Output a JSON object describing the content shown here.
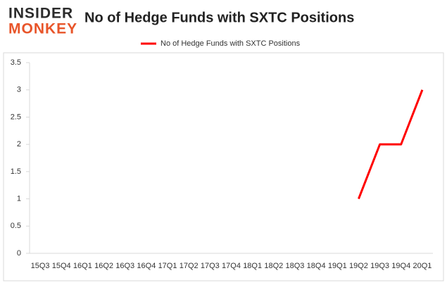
{
  "chart_data": {
    "type": "line",
    "logo": [
      "INSIDER",
      "MONKEY"
    ],
    "title": "No of Hedge Funds with SXTC Positions",
    "categories": [
      "15Q3",
      "15Q4",
      "16Q1",
      "16Q2",
      "16Q3",
      "16Q4",
      "17Q1",
      "17Q2",
      "17Q3",
      "17Q4",
      "18Q1",
      "18Q2",
      "18Q3",
      "18Q4",
      "19Q1",
      "19Q2",
      "19Q3",
      "19Q4",
      "20Q1"
    ],
    "series": [
      {
        "name": "No of Hedge Funds with SXTC Positions",
        "color": "#ff0000",
        "values": [
          null,
          null,
          null,
          null,
          null,
          null,
          null,
          null,
          null,
          null,
          null,
          null,
          null,
          null,
          null,
          1,
          2,
          2,
          3
        ]
      }
    ],
    "ylim": [
      0,
      3.5
    ],
    "yticks": [
      0,
      0.5,
      1,
      1.5,
      2,
      2.5,
      3,
      3.5
    ],
    "grid": false,
    "legend": "top"
  }
}
